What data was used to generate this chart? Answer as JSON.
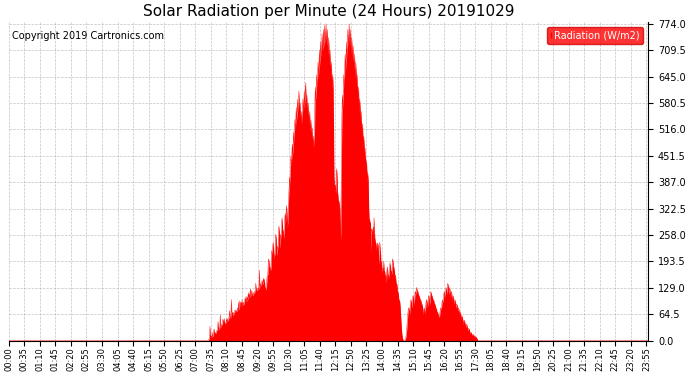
{
  "title": "Solar Radiation per Minute (24 Hours) 20191029",
  "copyright": "Copyright 2019 Cartronics.com",
  "legend_label": "Radiation (W/m2)",
  "yticks": [
    0.0,
    64.5,
    129.0,
    193.5,
    258.0,
    322.5,
    387.0,
    451.5,
    516.0,
    580.5,
    645.0,
    709.5,
    774.0
  ],
  "ymax": 774.0,
  "ymin": 0.0,
  "fill_color": "#FF0000",
  "line_color": "#FF0000",
  "bg_color": "#FFFFFF",
  "grid_color": "#AAAAAA",
  "title_fontsize": 11,
  "copyright_fontsize": 7,
  "legend_bg": "#FF0000",
  "legend_text_color": "#FFFFFF",
  "figwidth": 6.9,
  "figheight": 3.75,
  "dpi": 100
}
